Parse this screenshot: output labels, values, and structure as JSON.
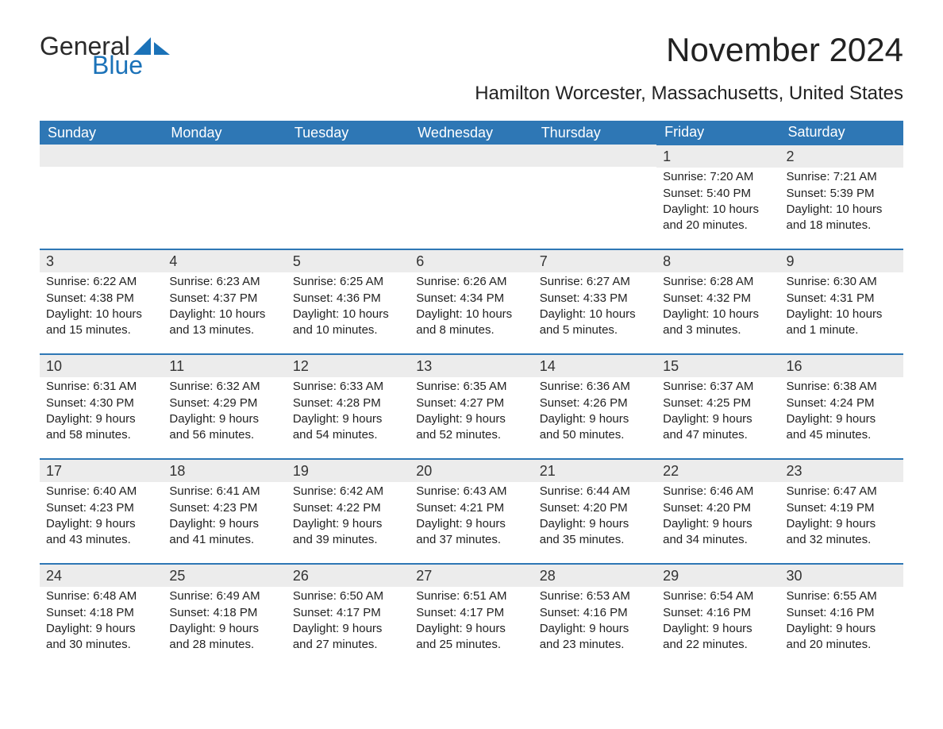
{
  "brand": {
    "general": "General",
    "blue": "Blue"
  },
  "title": "November 2024",
  "subtitle": "Hamilton Worcester, Massachusetts, United States",
  "colors": {
    "header_bg": "#2e77b5",
    "header_text": "#ffffff",
    "daynum_bg": "#ececec",
    "row_border": "#2e77b5",
    "text": "#222222",
    "logo_blue": "#1b72b8"
  },
  "weekdays": [
    "Sunday",
    "Monday",
    "Tuesday",
    "Wednesday",
    "Thursday",
    "Friday",
    "Saturday"
  ],
  "labels": {
    "sunrise": "Sunrise:",
    "sunset": "Sunset:",
    "daylight": "Daylight:"
  },
  "weeks": [
    [
      null,
      null,
      null,
      null,
      null,
      {
        "n": "1",
        "sunrise": "7:20 AM",
        "sunset": "5:40 PM",
        "daylight": "10 hours and 20 minutes."
      },
      {
        "n": "2",
        "sunrise": "7:21 AM",
        "sunset": "5:39 PM",
        "daylight": "10 hours and 18 minutes."
      }
    ],
    [
      {
        "n": "3",
        "sunrise": "6:22 AM",
        "sunset": "4:38 PM",
        "daylight": "10 hours and 15 minutes."
      },
      {
        "n": "4",
        "sunrise": "6:23 AM",
        "sunset": "4:37 PM",
        "daylight": "10 hours and 13 minutes."
      },
      {
        "n": "5",
        "sunrise": "6:25 AM",
        "sunset": "4:36 PM",
        "daylight": "10 hours and 10 minutes."
      },
      {
        "n": "6",
        "sunrise": "6:26 AM",
        "sunset": "4:34 PM",
        "daylight": "10 hours and 8 minutes."
      },
      {
        "n": "7",
        "sunrise": "6:27 AM",
        "sunset": "4:33 PM",
        "daylight": "10 hours and 5 minutes."
      },
      {
        "n": "8",
        "sunrise": "6:28 AM",
        "sunset": "4:32 PM",
        "daylight": "10 hours and 3 minutes."
      },
      {
        "n": "9",
        "sunrise": "6:30 AM",
        "sunset": "4:31 PM",
        "daylight": "10 hours and 1 minute."
      }
    ],
    [
      {
        "n": "10",
        "sunrise": "6:31 AM",
        "sunset": "4:30 PM",
        "daylight": "9 hours and 58 minutes."
      },
      {
        "n": "11",
        "sunrise": "6:32 AM",
        "sunset": "4:29 PM",
        "daylight": "9 hours and 56 minutes."
      },
      {
        "n": "12",
        "sunrise": "6:33 AM",
        "sunset": "4:28 PM",
        "daylight": "9 hours and 54 minutes."
      },
      {
        "n": "13",
        "sunrise": "6:35 AM",
        "sunset": "4:27 PM",
        "daylight": "9 hours and 52 minutes."
      },
      {
        "n": "14",
        "sunrise": "6:36 AM",
        "sunset": "4:26 PM",
        "daylight": "9 hours and 50 minutes."
      },
      {
        "n": "15",
        "sunrise": "6:37 AM",
        "sunset": "4:25 PM",
        "daylight": "9 hours and 47 minutes."
      },
      {
        "n": "16",
        "sunrise": "6:38 AM",
        "sunset": "4:24 PM",
        "daylight": "9 hours and 45 minutes."
      }
    ],
    [
      {
        "n": "17",
        "sunrise": "6:40 AM",
        "sunset": "4:23 PM",
        "daylight": "9 hours and 43 minutes."
      },
      {
        "n": "18",
        "sunrise": "6:41 AM",
        "sunset": "4:23 PM",
        "daylight": "9 hours and 41 minutes."
      },
      {
        "n": "19",
        "sunrise": "6:42 AM",
        "sunset": "4:22 PM",
        "daylight": "9 hours and 39 minutes."
      },
      {
        "n": "20",
        "sunrise": "6:43 AM",
        "sunset": "4:21 PM",
        "daylight": "9 hours and 37 minutes."
      },
      {
        "n": "21",
        "sunrise": "6:44 AM",
        "sunset": "4:20 PM",
        "daylight": "9 hours and 35 minutes."
      },
      {
        "n": "22",
        "sunrise": "6:46 AM",
        "sunset": "4:20 PM",
        "daylight": "9 hours and 34 minutes."
      },
      {
        "n": "23",
        "sunrise": "6:47 AM",
        "sunset": "4:19 PM",
        "daylight": "9 hours and 32 minutes."
      }
    ],
    [
      {
        "n": "24",
        "sunrise": "6:48 AM",
        "sunset": "4:18 PM",
        "daylight": "9 hours and 30 minutes."
      },
      {
        "n": "25",
        "sunrise": "6:49 AM",
        "sunset": "4:18 PM",
        "daylight": "9 hours and 28 minutes."
      },
      {
        "n": "26",
        "sunrise": "6:50 AM",
        "sunset": "4:17 PM",
        "daylight": "9 hours and 27 minutes."
      },
      {
        "n": "27",
        "sunrise": "6:51 AM",
        "sunset": "4:17 PM",
        "daylight": "9 hours and 25 minutes."
      },
      {
        "n": "28",
        "sunrise": "6:53 AM",
        "sunset": "4:16 PM",
        "daylight": "9 hours and 23 minutes."
      },
      {
        "n": "29",
        "sunrise": "6:54 AM",
        "sunset": "4:16 PM",
        "daylight": "9 hours and 22 minutes."
      },
      {
        "n": "30",
        "sunrise": "6:55 AM",
        "sunset": "4:16 PM",
        "daylight": "9 hours and 20 minutes."
      }
    ]
  ]
}
